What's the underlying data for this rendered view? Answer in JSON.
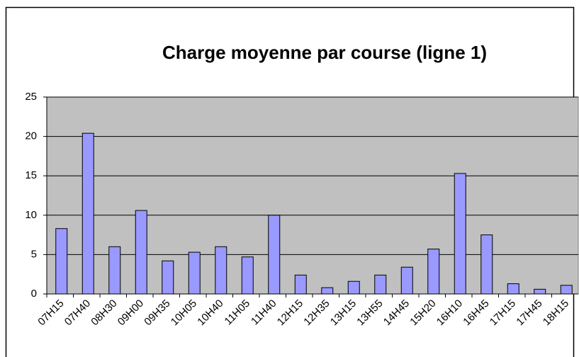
{
  "chart_data": {
    "type": "bar",
    "title": "Charge moyenne par course (ligne 1)",
    "categories": [
      "07H15",
      "07H40",
      "08H30",
      "09H00",
      "09H35",
      "10H05",
      "10H40",
      "11H05",
      "11H40",
      "12H15",
      "12H35",
      "13H15",
      "13H55",
      "14H45",
      "15H20",
      "16H10",
      "16H45",
      "17H15",
      "17H45",
      "18H15"
    ],
    "values": [
      8.3,
      20.4,
      6.0,
      10.6,
      4.2,
      5.3,
      6.0,
      4.7,
      10.0,
      2.4,
      0.8,
      1.6,
      2.4,
      3.4,
      5.7,
      15.3,
      7.5,
      1.3,
      0.6,
      1.1
    ],
    "color": "#9999ff",
    "ylim": [
      0,
      25
    ],
    "yticks": [
      0,
      5,
      10,
      15,
      20,
      25
    ],
    "grid": true
  }
}
